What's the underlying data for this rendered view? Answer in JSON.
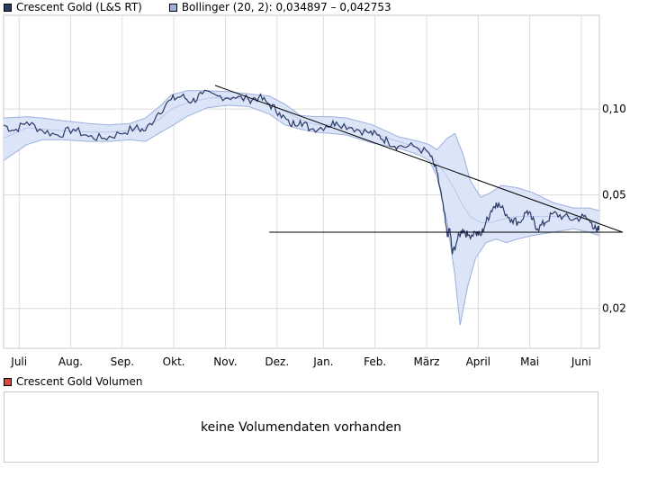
{
  "legend": {
    "price_label": "Crescent Gold (L&S RT)",
    "bollinger_label": "Bollinger (20, 2): 0,034897 – 0,042753",
    "price_color": "#2b3a66",
    "bollinger_color": "#9db0dd"
  },
  "volume": {
    "legend_label": "Crescent Gold Volumen",
    "legend_color": "#e0463c",
    "message": "keine Volumendaten vorhanden"
  },
  "chart_data": {
    "type": "line",
    "title": "",
    "y_scale": "log",
    "ylim": [
      0.0145,
      0.213
    ],
    "y_ticks": [
      {
        "value": 0.1,
        "label": "0,10"
      },
      {
        "value": 0.05,
        "label": "0,05"
      },
      {
        "value": 0.02,
        "label": "0,02"
      }
    ],
    "x_unit": "months since start of Juli",
    "xlim": [
      -0.15,
      11.4
    ],
    "x_ticks": [
      {
        "value": 0.15,
        "label": "Juli"
      },
      {
        "value": 1.15,
        "label": "Aug."
      },
      {
        "value": 2.15,
        "label": "Sep."
      },
      {
        "value": 3.15,
        "label": "Okt."
      },
      {
        "value": 4.15,
        "label": "Nov."
      },
      {
        "value": 5.15,
        "label": "Dez."
      },
      {
        "value": 6.05,
        "label": "Jan."
      },
      {
        "value": 7.05,
        "label": "Feb."
      },
      {
        "value": 8.05,
        "label": "März"
      },
      {
        "value": 9.05,
        "label": "April"
      },
      {
        "value": 10.05,
        "label": "Mai"
      },
      {
        "value": 11.05,
        "label": "Juni"
      }
    ],
    "series": [
      {
        "name": "Crescent Gold (L&S RT)",
        "color": "#2b3a66",
        "points": [
          [
            -0.15,
            0.088
          ],
          [
            0.05,
            0.084
          ],
          [
            0.3,
            0.09
          ],
          [
            0.6,
            0.084
          ],
          [
            0.9,
            0.081
          ],
          [
            1.2,
            0.085
          ],
          [
            1.5,
            0.08
          ],
          [
            1.8,
            0.079
          ],
          [
            2.1,
            0.082
          ],
          [
            2.4,
            0.086
          ],
          [
            2.6,
            0.084
          ],
          [
            2.85,
            0.097
          ],
          [
            3.1,
            0.108
          ],
          [
            3.3,
            0.111
          ],
          [
            3.5,
            0.106
          ],
          [
            3.7,
            0.113
          ],
          [
            4.0,
            0.111
          ],
          [
            4.3,
            0.11
          ],
          [
            4.6,
            0.108
          ],
          [
            4.8,
            0.11
          ],
          [
            5.0,
            0.104
          ],
          [
            5.2,
            0.097
          ],
          [
            5.4,
            0.088
          ],
          [
            5.6,
            0.091
          ],
          [
            5.8,
            0.085
          ],
          [
            6.1,
            0.087
          ],
          [
            6.3,
            0.09
          ],
          [
            6.6,
            0.086
          ],
          [
            6.9,
            0.083
          ],
          [
            7.1,
            0.081
          ],
          [
            7.3,
            0.077
          ],
          [
            7.5,
            0.074
          ],
          [
            7.8,
            0.074
          ],
          [
            8.1,
            0.07
          ],
          [
            8.25,
            0.06
          ],
          [
            8.35,
            0.048
          ],
          [
            8.45,
            0.036
          ],
          [
            8.5,
            0.038
          ],
          [
            8.55,
            0.031
          ],
          [
            8.65,
            0.035
          ],
          [
            8.75,
            0.038
          ],
          [
            8.85,
            0.036
          ],
          [
            9.0,
            0.037
          ],
          [
            9.1,
            0.036
          ],
          [
            9.2,
            0.04
          ],
          [
            9.3,
            0.044
          ],
          [
            9.4,
            0.047
          ],
          [
            9.55,
            0.044
          ],
          [
            9.7,
            0.041
          ],
          [
            9.85,
            0.04
          ],
          [
            10.0,
            0.044
          ],
          [
            10.1,
            0.041
          ],
          [
            10.2,
            0.038
          ],
          [
            10.35,
            0.04
          ],
          [
            10.5,
            0.043
          ],
          [
            10.7,
            0.042
          ],
          [
            10.9,
            0.041
          ],
          [
            11.1,
            0.042
          ],
          [
            11.25,
            0.04
          ],
          [
            11.35,
            0.037
          ],
          [
            11.4,
            0.039
          ]
        ]
      },
      {
        "name": "Bollinger (20, 2)",
        "color": "#9db0dd",
        "upper": [
          [
            -0.15,
            0.093
          ],
          [
            0.3,
            0.094
          ],
          [
            0.6,
            0.093
          ],
          [
            1.0,
            0.091
          ],
          [
            1.5,
            0.089
          ],
          [
            1.9,
            0.088
          ],
          [
            2.3,
            0.089
          ],
          [
            2.6,
            0.093
          ],
          [
            2.9,
            0.103
          ],
          [
            3.1,
            0.112
          ],
          [
            3.4,
            0.116
          ],
          [
            3.8,
            0.116
          ],
          [
            4.2,
            0.115
          ],
          [
            4.6,
            0.113
          ],
          [
            5.0,
            0.111
          ],
          [
            5.3,
            0.104
          ],
          [
            5.6,
            0.095
          ],
          [
            5.9,
            0.094
          ],
          [
            6.2,
            0.094
          ],
          [
            6.5,
            0.093
          ],
          [
            7.0,
            0.088
          ],
          [
            7.5,
            0.08
          ],
          [
            7.9,
            0.077
          ],
          [
            8.1,
            0.075
          ],
          [
            8.25,
            0.072
          ],
          [
            8.45,
            0.079
          ],
          [
            8.6,
            0.082
          ],
          [
            8.75,
            0.07
          ],
          [
            8.9,
            0.056
          ],
          [
            9.1,
            0.049
          ],
          [
            9.3,
            0.051
          ],
          [
            9.5,
            0.054
          ],
          [
            9.8,
            0.053
          ],
          [
            10.1,
            0.051
          ],
          [
            10.5,
            0.047
          ],
          [
            10.9,
            0.045
          ],
          [
            11.2,
            0.045
          ],
          [
            11.4,
            0.044
          ]
        ],
        "middle": [
          [
            -0.15,
            0.079
          ],
          [
            0.3,
            0.086
          ],
          [
            0.6,
            0.085
          ],
          [
            1.0,
            0.084
          ],
          [
            1.5,
            0.083
          ],
          [
            1.9,
            0.083
          ],
          [
            2.3,
            0.084
          ],
          [
            2.6,
            0.086
          ],
          [
            2.9,
            0.093
          ],
          [
            3.1,
            0.1
          ],
          [
            3.4,
            0.105
          ],
          [
            3.8,
            0.109
          ],
          [
            4.2,
            0.11
          ],
          [
            4.6,
            0.108
          ],
          [
            5.0,
            0.104
          ],
          [
            5.3,
            0.098
          ],
          [
            5.6,
            0.092
          ],
          [
            5.9,
            0.088
          ],
          [
            6.2,
            0.088
          ],
          [
            6.5,
            0.087
          ],
          [
            7.0,
            0.082
          ],
          [
            7.5,
            0.077
          ],
          [
            7.9,
            0.073
          ],
          [
            8.1,
            0.07
          ],
          [
            8.25,
            0.065
          ],
          [
            8.45,
            0.058
          ],
          [
            8.6,
            0.052
          ],
          [
            8.75,
            0.046
          ],
          [
            8.9,
            0.042
          ],
          [
            9.1,
            0.04
          ],
          [
            9.3,
            0.04
          ],
          [
            9.5,
            0.041
          ],
          [
            9.8,
            0.042
          ],
          [
            10.1,
            0.042
          ],
          [
            10.5,
            0.042
          ],
          [
            10.9,
            0.042
          ],
          [
            11.2,
            0.041
          ],
          [
            11.4,
            0.04
          ]
        ],
        "lower": [
          [
            -0.15,
            0.066
          ],
          [
            0.3,
            0.075
          ],
          [
            0.6,
            0.078
          ],
          [
            1.0,
            0.078
          ],
          [
            1.5,
            0.077
          ],
          [
            1.9,
            0.077
          ],
          [
            2.3,
            0.078
          ],
          [
            2.6,
            0.077
          ],
          [
            2.9,
            0.083
          ],
          [
            3.1,
            0.087
          ],
          [
            3.4,
            0.094
          ],
          [
            3.8,
            0.101
          ],
          [
            4.2,
            0.103
          ],
          [
            4.6,
            0.102
          ],
          [
            5.0,
            0.096
          ],
          [
            5.3,
            0.088
          ],
          [
            5.6,
            0.085
          ],
          [
            5.9,
            0.083
          ],
          [
            6.2,
            0.082
          ],
          [
            6.5,
            0.081
          ],
          [
            7.0,
            0.076
          ],
          [
            7.5,
            0.073
          ],
          [
            7.9,
            0.069
          ],
          [
            8.1,
            0.066
          ],
          [
            8.25,
            0.058
          ],
          [
            8.45,
            0.04
          ],
          [
            8.6,
            0.026
          ],
          [
            8.7,
            0.0175
          ],
          [
            8.85,
            0.024
          ],
          [
            9.0,
            0.03
          ],
          [
            9.2,
            0.034
          ],
          [
            9.4,
            0.035
          ],
          [
            9.6,
            0.034
          ],
          [
            9.8,
            0.035
          ],
          [
            10.1,
            0.036
          ],
          [
            10.5,
            0.037
          ],
          [
            10.9,
            0.038
          ],
          [
            11.2,
            0.037
          ],
          [
            11.4,
            0.036
          ]
        ]
      }
    ],
    "annotations": [
      {
        "type": "trendline",
        "from": [
          3.95,
          0.121
        ],
        "to": [
          11.85,
          0.037
        ]
      },
      {
        "type": "horizontal_line",
        "from": [
          5.0,
          0.037
        ],
        "to": [
          11.85,
          0.037
        ]
      }
    ]
  }
}
